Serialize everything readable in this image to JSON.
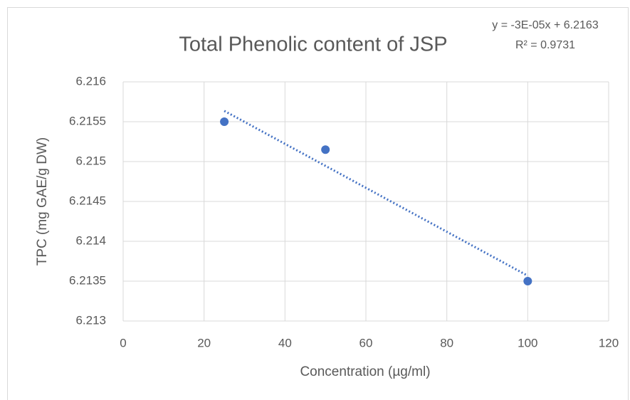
{
  "chart_data": {
    "type": "scatter",
    "title": "Total Phenolic content of JSP",
    "x_label": "Concentration (µg/ml)",
    "y_label": "TPC (mg GAE/g DW)",
    "annotations": [
      "y = -3E-05x + 6.2163",
      "R² = 0.9731"
    ],
    "series": [
      {
        "name": "TPC",
        "color": "#4472c4",
        "x": [
          25,
          50,
          100
        ],
        "values": [
          6.2155,
          6.21515,
          6.2135
        ]
      }
    ],
    "trendline": {
      "type": "linear",
      "style": "dotted"
    },
    "xlim": [
      0,
      120
    ],
    "xticks": [
      0,
      20,
      40,
      60,
      80,
      100,
      120
    ],
    "ylim": [
      6.213,
      6.216
    ],
    "yticks": [
      6.213,
      6.2135,
      6.214,
      6.2145,
      6.215,
      6.2155,
      6.216
    ],
    "grid": true
  }
}
